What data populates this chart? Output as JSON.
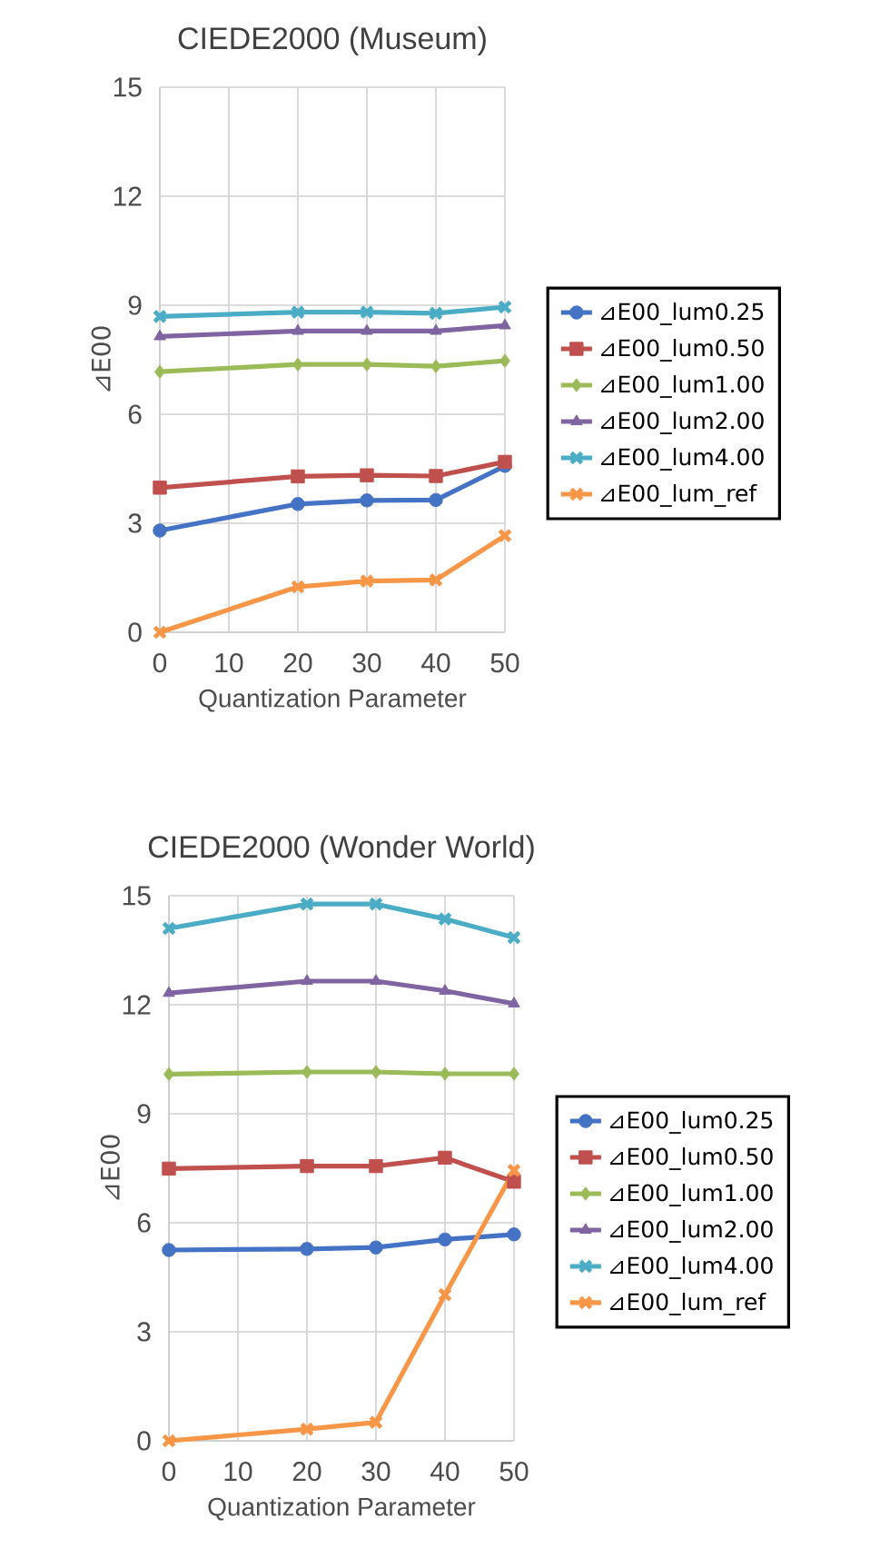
{
  "chart_data": [
    {
      "type": "line",
      "title": "CIEDE2000 (Museum)",
      "xlabel": "Quantization Parameter",
      "ylabel": "⊿E00",
      "x": [
        0,
        20,
        30,
        40,
        50
      ],
      "xlim": [
        0,
        50
      ],
      "xticks": [
        0,
        10,
        20,
        30,
        40,
        50
      ],
      "ylim": [
        0,
        15
      ],
      "yticks": [
        0,
        3,
        6,
        9,
        12,
        15
      ],
      "grid": true,
      "legend": "right",
      "line_style": "solid",
      "series": [
        {
          "name": "⊿E00_lum0.25",
          "color": "#4472c4",
          "marker": "circle",
          "values": [
            2.8,
            3.53,
            3.63,
            3.64,
            4.58
          ]
        },
        {
          "name": "⊿E00_lum0.50",
          "color": "#c0504d",
          "marker": "square",
          "values": [
            3.98,
            4.29,
            4.32,
            4.3,
            4.69
          ]
        },
        {
          "name": "⊿E00_lum1.00",
          "color": "#9bbb59",
          "marker": "diamond",
          "values": [
            7.17,
            7.37,
            7.37,
            7.32,
            7.47
          ]
        },
        {
          "name": "⊿E00_lum2.00",
          "color": "#8064a2",
          "marker": "triangle",
          "values": [
            8.14,
            8.29,
            8.29,
            8.29,
            8.44
          ]
        },
        {
          "name": "⊿E00_lum4.00",
          "color": "#4bacc6",
          "marker": "cross",
          "values": [
            8.69,
            8.81,
            8.81,
            8.78,
            8.95
          ]
        },
        {
          "name": "⊿E00_lum_ref",
          "color": "#f79646",
          "marker": "cross",
          "values": [
            0,
            1.25,
            1.41,
            1.44,
            2.66
          ]
        }
      ]
    },
    {
      "type": "line",
      "title": "CIEDE2000 (Wonder World)",
      "xlabel": "Quantization Parameter",
      "ylabel": "⊿E00",
      "x": [
        0,
        20,
        30,
        40,
        50
      ],
      "xlim": [
        0,
        50
      ],
      "xticks": [
        0,
        10,
        20,
        30,
        40,
        50
      ],
      "ylim": [
        0,
        15
      ],
      "yticks": [
        0,
        3,
        6,
        9,
        12,
        15
      ],
      "grid": true,
      "legend": "right",
      "line_style": "solid",
      "series": [
        {
          "name": "⊿E00_lum0.25",
          "color": "#4472c4",
          "marker": "circle",
          "values": [
            5.25,
            5.28,
            5.32,
            5.54,
            5.68
          ]
        },
        {
          "name": "⊿E00_lum0.50",
          "color": "#c0504d",
          "marker": "square",
          "values": [
            7.49,
            7.56,
            7.56,
            7.79,
            7.13
          ]
        },
        {
          "name": "⊿E00_lum1.00",
          "color": "#9bbb59",
          "marker": "diamond",
          "values": [
            10.09,
            10.15,
            10.15,
            10.1,
            10.1
          ]
        },
        {
          "name": "⊿E00_lum2.00",
          "color": "#8064a2",
          "marker": "triangle",
          "values": [
            12.32,
            12.65,
            12.65,
            12.38,
            12.03
          ]
        },
        {
          "name": "⊿E00_lum4.00",
          "color": "#4bacc6",
          "marker": "cross",
          "values": [
            14.1,
            14.77,
            14.77,
            14.36,
            13.85
          ]
        },
        {
          "name": "⊿E00_lum_ref",
          "color": "#f79646",
          "marker": "cross",
          "values": [
            0,
            0.32,
            0.51,
            4.02,
            7.44
          ]
        }
      ]
    }
  ]
}
